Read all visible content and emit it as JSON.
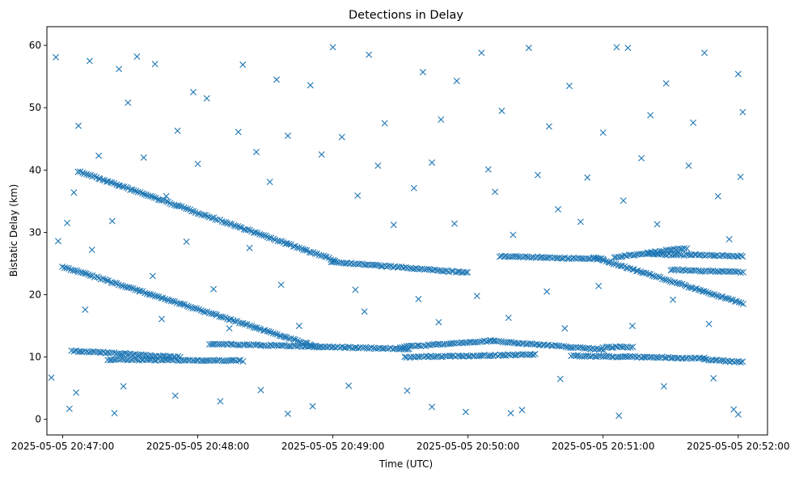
{
  "chart_data": {
    "type": "scatter",
    "title": "Detections in Delay",
    "xlabel": "Time (UTC)",
    "ylabel": "Bistatic Delay (km)",
    "marker": "x",
    "color": "#1f77b4",
    "xlim": [
      "2025-05-05 20:46:53",
      "2025-05-05 20:52:13"
    ],
    "ylim": [
      -2.5,
      63
    ],
    "x_ticks": [
      "2025-05-05 20:47:00",
      "2025-05-05 20:48:00",
      "2025-05-05 20:49:00",
      "2025-05-05 20:50:00",
      "2025-05-05 20:51:00",
      "2025-05-05 20:52:00"
    ],
    "y_ticks": [
      0,
      10,
      20,
      30,
      40,
      50,
      60
    ],
    "grid": false,
    "series": [
      {
        "points_note": "",
        "tracks": [
          {
            "from": [
              "2025-05-05 20:47:07",
              39.8
            ],
            "to": [
              "2025-05-05 20:49:01",
              25.5
            ]
          },
          {
            "from": [
              "2025-05-05 20:48:59",
              25.3
            ],
            "to": [
              "2025-05-05 20:50:00",
              23.5
            ]
          },
          {
            "from": [
              "2025-05-05 20:47:00",
              24.5
            ],
            "to": [
              "2025-05-05 20:48:54",
              11.5
            ]
          },
          {
            "from": [
              "2025-05-05 20:47:04",
              11.0
            ],
            "to": [
              "2025-05-05 20:47:52",
              10.0
            ]
          },
          {
            "from": [
              "2025-05-05 20:47:20",
              9.6
            ],
            "to": [
              "2025-05-05 20:48:20",
              9.4
            ]
          },
          {
            "from": [
              "2025-05-05 20:48:05",
              12.1
            ],
            "to": [
              "2025-05-05 20:49:34",
              11.3
            ]
          },
          {
            "from": [
              "2025-05-05 20:49:30",
              11.6
            ],
            "to": [
              "2025-05-05 20:50:10",
              12.6
            ]
          },
          {
            "from": [
              "2025-05-05 20:50:10",
              12.6
            ],
            "to": [
              "2025-05-05 20:51:00",
              11.2
            ]
          },
          {
            "from": [
              "2025-05-05 20:51:00",
              11.6
            ],
            "to": [
              "2025-05-05 20:51:13",
              11.6
            ]
          },
          {
            "from": [
              "2025-05-05 20:49:32",
              10.0
            ],
            "to": [
              "2025-05-05 20:50:30",
              10.4
            ]
          },
          {
            "from": [
              "2025-05-05 20:50:46",
              10.2
            ],
            "to": [
              "2025-05-05 20:51:45",
              9.8
            ]
          },
          {
            "from": [
              "2025-05-05 20:51:45",
              9.6
            ],
            "to": [
              "2025-05-05 20:52:02",
              9.2
            ]
          },
          {
            "from": [
              "2025-05-05 20:50:14",
              26.2
            ],
            "to": [
              "2025-05-05 20:51:00",
              25.7
            ]
          },
          {
            "from": [
              "2025-05-05 20:50:56",
              26.0
            ],
            "to": [
              "2025-05-05 20:52:02",
              18.6
            ]
          },
          {
            "from": [
              "2025-05-05 20:51:05",
              26.0
            ],
            "to": [
              "2025-05-05 20:51:37",
              27.5
            ]
          },
          {
            "from": [
              "2025-05-05 20:51:30",
              24.0
            ],
            "to": [
              "2025-05-05 20:52:02",
              23.6
            ]
          },
          {
            "from": [
              "2025-05-05 20:51:20",
              26.5
            ],
            "to": [
              "2025-05-05 20:52:02",
              26.2
            ]
          }
        ],
        "scatter_points": [
          [
            "2025-05-05 20:46:57",
            58.1
          ],
          [
            "2025-05-05 20:47:12",
            57.5
          ],
          [
            "2025-05-05 20:47:25",
            56.2
          ],
          [
            "2025-05-05 20:47:33",
            58.2
          ],
          [
            "2025-05-05 20:47:41",
            57.0
          ],
          [
            "2025-05-05 20:47:58",
            52.5
          ],
          [
            "2025-05-05 20:48:04",
            51.5
          ],
          [
            "2025-05-05 20:48:20",
            56.9
          ],
          [
            "2025-05-05 20:48:35",
            54.5
          ],
          [
            "2025-05-05 20:48:50",
            53.6
          ],
          [
            "2025-05-05 20:49:00",
            59.7
          ],
          [
            "2025-05-05 20:49:16",
            58.5
          ],
          [
            "2025-05-05 20:49:40",
            55.7
          ],
          [
            "2025-05-05 20:49:55",
            54.3
          ],
          [
            "2025-05-05 20:50:06",
            58.8
          ],
          [
            "2025-05-05 20:50:27",
            59.6
          ],
          [
            "2025-05-05 20:50:45",
            53.5
          ],
          [
            "2025-05-05 20:51:06",
            59.7
          ],
          [
            "2025-05-05 20:51:11",
            59.6
          ],
          [
            "2025-05-05 20:51:28",
            53.9
          ],
          [
            "2025-05-05 20:51:45",
            58.8
          ],
          [
            "2025-05-05 20:52:00",
            55.4
          ],
          [
            "2025-05-05 20:47:07",
            47.1
          ],
          [
            "2025-05-05 20:47:29",
            50.8
          ],
          [
            "2025-05-05 20:47:51",
            46.3
          ],
          [
            "2025-05-05 20:48:18",
            46.1
          ],
          [
            "2025-05-05 20:48:40",
            45.5
          ],
          [
            "2025-05-05 20:49:04",
            45.3
          ],
          [
            "2025-05-05 20:49:23",
            47.5
          ],
          [
            "2025-05-05 20:49:48",
            48.1
          ],
          [
            "2025-05-05 20:50:15",
            49.5
          ],
          [
            "2025-05-05 20:50:36",
            47.0
          ],
          [
            "2025-05-05 20:51:00",
            46.0
          ],
          [
            "2025-05-05 20:51:21",
            48.8
          ],
          [
            "2025-05-05 20:51:40",
            47.6
          ],
          [
            "2025-05-05 20:52:02",
            49.3
          ],
          [
            "2025-05-05 20:47:16",
            42.3
          ],
          [
            "2025-05-05 20:47:36",
            42.0
          ],
          [
            "2025-05-05 20:48:00",
            41.0
          ],
          [
            "2025-05-05 20:48:26",
            42.9
          ],
          [
            "2025-05-05 20:48:55",
            42.5
          ],
          [
            "2025-05-05 20:49:20",
            40.7
          ],
          [
            "2025-05-05 20:49:44",
            41.2
          ],
          [
            "2025-05-05 20:50:09",
            40.1
          ],
          [
            "2025-05-05 20:50:31",
            39.2
          ],
          [
            "2025-05-05 20:50:53",
            38.8
          ],
          [
            "2025-05-05 20:51:17",
            41.9
          ],
          [
            "2025-05-05 20:51:38",
            40.7
          ],
          [
            "2025-05-05 20:52:01",
            38.9
          ],
          [
            "2025-05-05 20:47:05",
            36.4
          ],
          [
            "2025-05-05 20:47:46",
            35.8
          ],
          [
            "2025-05-05 20:48:32",
            38.1
          ],
          [
            "2025-05-05 20:49:11",
            35.9
          ],
          [
            "2025-05-05 20:49:36",
            37.1
          ],
          [
            "2025-05-05 20:50:12",
            36.5
          ],
          [
            "2025-05-05 20:50:40",
            33.7
          ],
          [
            "2025-05-05 20:51:09",
            35.1
          ],
          [
            "2025-05-05 20:51:51",
            35.8
          ],
          [
            "2025-05-05 20:47:02",
            31.5
          ],
          [
            "2025-05-05 20:47:22",
            31.8
          ],
          [
            "2025-05-05 20:47:55",
            28.5
          ],
          [
            "2025-05-05 20:48:23",
            27.5
          ],
          [
            "2025-05-05 20:49:27",
            31.2
          ],
          [
            "2025-05-05 20:49:54",
            31.4
          ],
          [
            "2025-05-05 20:50:20",
            29.6
          ],
          [
            "2025-05-05 20:50:50",
            31.7
          ],
          [
            "2025-05-05 20:51:24",
            31.3
          ],
          [
            "2025-05-05 20:51:56",
            28.9
          ],
          [
            "2025-05-05 20:46:58",
            28.6
          ],
          [
            "2025-05-05 20:47:13",
            27.2
          ],
          [
            "2025-05-05 20:47:40",
            23.0
          ],
          [
            "2025-05-05 20:48:07",
            20.9
          ],
          [
            "2025-05-05 20:48:37",
            21.6
          ],
          [
            "2025-05-05 20:49:10",
            20.8
          ],
          [
            "2025-05-05 20:49:38",
            19.3
          ],
          [
            "2025-05-05 20:50:04",
            19.8
          ],
          [
            "2025-05-05 20:50:35",
            20.5
          ],
          [
            "2025-05-05 20:50:58",
            21.4
          ],
          [
            "2025-05-05 20:51:31",
            19.2
          ],
          [
            "2025-05-05 20:47:10",
            17.6
          ],
          [
            "2025-05-05 20:47:44",
            16.1
          ],
          [
            "2025-05-05 20:48:14",
            14.6
          ],
          [
            "2025-05-05 20:48:45",
            15.0
          ],
          [
            "2025-05-05 20:49:14",
            17.3
          ],
          [
            "2025-05-05 20:49:47",
            15.6
          ],
          [
            "2025-05-05 20:50:18",
            16.3
          ],
          [
            "2025-05-05 20:50:43",
            14.6
          ],
          [
            "2025-05-05 20:51:13",
            15.0
          ],
          [
            "2025-05-05 20:51:47",
            15.3
          ],
          [
            "2025-05-05 20:46:55",
            6.7
          ],
          [
            "2025-05-05 20:47:06",
            4.3
          ],
          [
            "2025-05-05 20:47:27",
            5.3
          ],
          [
            "2025-05-05 20:47:50",
            3.8
          ],
          [
            "2025-05-05 20:48:10",
            2.9
          ],
          [
            "2025-05-05 20:48:28",
            4.7
          ],
          [
            "2025-05-05 20:48:51",
            2.1
          ],
          [
            "2025-05-05 20:49:07",
            5.4
          ],
          [
            "2025-05-05 20:49:33",
            4.6
          ],
          [
            "2025-05-05 20:49:59",
            1.2
          ],
          [
            "2025-05-05 20:50:19",
            1.0
          ],
          [
            "2025-05-05 20:50:41",
            6.5
          ],
          [
            "2025-05-05 20:51:07",
            0.6
          ],
          [
            "2025-05-05 20:51:27",
            5.3
          ],
          [
            "2025-05-05 20:51:49",
            6.6
          ],
          [
            "2025-05-05 20:52:00",
            0.8
          ],
          [
            "2025-05-05 20:47:03",
            1.7
          ],
          [
            "2025-05-05 20:47:23",
            1.0
          ],
          [
            "2025-05-05 20:48:40",
            0.9
          ],
          [
            "2025-05-05 20:49:44",
            2.0
          ],
          [
            "2025-05-05 20:50:24",
            1.5
          ],
          [
            "2025-05-05 20:51:58",
            1.6
          ]
        ]
      }
    ]
  }
}
